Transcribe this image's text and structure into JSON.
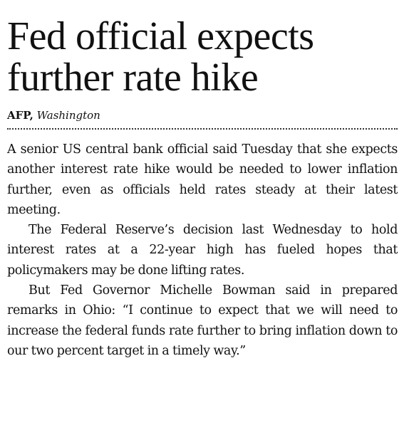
{
  "article": {
    "headline": "Fed official expects further rate hike",
    "byline": {
      "agency": "AFP,",
      "location": "Washington"
    },
    "paragraphs": [
      "A senior US central bank official said Tuesday that she expects another interest rate hike would be needed to lower inflation further, even as officials held rates steady at their latest meeting.",
      "The Federal Reserve’s decision last Wednesday to hold interest rates at a 22-year high has fueled hopes that policymakers may be done lifting rates.",
      "But Fed Governor Michelle Bowman said in prepared remarks in Ohio: “I continue to expect that we will need to increase the federal funds rate further to bring inflation down to our two percent target in a timely way.”"
    ]
  }
}
